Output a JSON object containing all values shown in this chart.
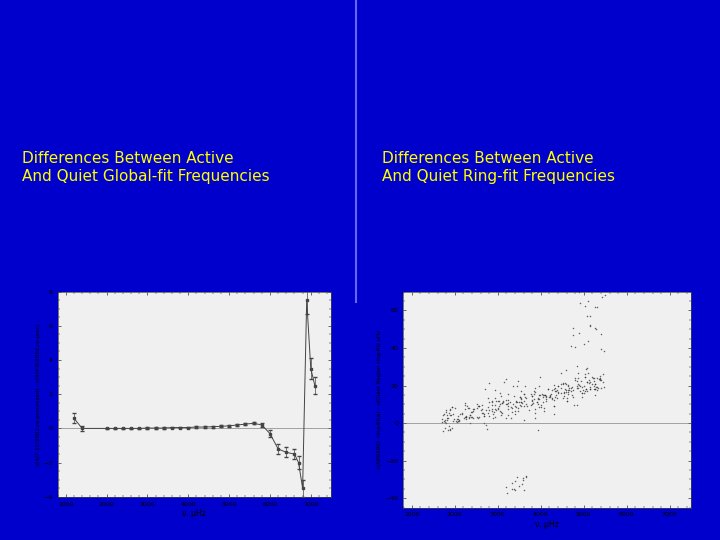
{
  "bg_color": "#0000cc",
  "title_left": "Differences Between Active\nAnd Quiet Global-fit Frequencies",
  "title_right": "Differences Between Active\nAnd Quiet Ring-fit Frequencies",
  "title_color": "#ffff00",
  "title_fontsize": 11,
  "left_plot": {
    "xlabel": "ν, μHz",
    "ylabel": "ν(4/7-12/2002,re-processed) - ν(4/4-9/2002,re-proc)",
    "xlim": [
      800,
      7500
    ],
    "ylim": [
      -4,
      8
    ],
    "xticks": [
      1000,
      2000,
      3000,
      4000,
      5000,
      6000,
      7000
    ],
    "yticks": [
      -4,
      -2,
      0,
      2,
      4,
      6,
      8
    ],
    "x_data": [
      1200,
      1400,
      2000,
      2200,
      2400,
      2600,
      2800,
      3000,
      3200,
      3400,
      3600,
      3800,
      4000,
      4200,
      4400,
      4600,
      4800,
      5000,
      5200,
      5400,
      5600,
      5800,
      6000,
      6200,
      6400,
      6600,
      6700,
      6800,
      6900,
      7000,
      7100
    ],
    "y_data": [
      0.6,
      0.0,
      0.0,
      0.0,
      0.0,
      0.0,
      0.0,
      0.02,
      0.02,
      0.02,
      0.05,
      0.05,
      0.05,
      0.08,
      0.08,
      0.1,
      0.12,
      0.15,
      0.2,
      0.25,
      0.3,
      0.2,
      -0.3,
      -1.2,
      -1.4,
      -1.5,
      -2.0,
      -3.5,
      7.5,
      3.5,
      2.5
    ],
    "yerr": [
      0.3,
      0.15,
      0.05,
      0.05,
      0.05,
      0.05,
      0.05,
      0.05,
      0.05,
      0.05,
      0.05,
      0.05,
      0.05,
      0.05,
      0.05,
      0.05,
      0.05,
      0.05,
      0.05,
      0.05,
      0.05,
      0.1,
      0.2,
      0.3,
      0.3,
      0.3,
      0.4,
      0.5,
      0.8,
      0.6,
      0.5
    ]
  },
  "right_plot": {
    "xlabel": "ν, μHz",
    "ylabel": "ν(AR9990)  ring-fit(a) - ν(Quiet Region ring-fit) μHz",
    "xlim": [
      800,
      7500
    ],
    "ylim": [
      -45,
      70
    ],
    "xticks": [
      1000,
      2000,
      3000,
      4000,
      5000,
      6000,
      7000
    ],
    "yticks": [
      -40,
      -20,
      0,
      20,
      40,
      60
    ]
  }
}
